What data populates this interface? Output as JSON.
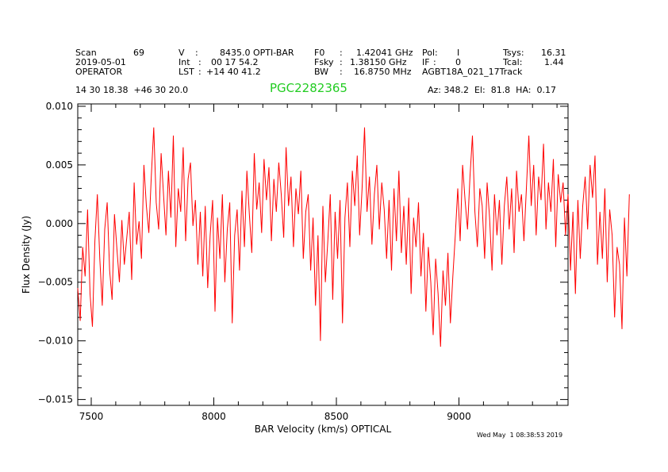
{
  "header": {
    "col1": {
      "scan_label": "Scan",
      "scan_value": "69",
      "date": "2019-05-01",
      "observer": "OPERATOR"
    },
    "col2": {
      "v_label": "V",
      "v_value": "8435.0 OPTI-BAR",
      "int_label": "Int",
      "int_value": "00 17 54.2",
      "lst_label": "LST",
      "lst_value": "+14 40 41.2"
    },
    "col3": {
      "f0_label": "F0",
      "f0_value": "1.42041 GHz",
      "fsky_label": "Fsky",
      "fsky_value": "1.38150 GHz",
      "bw_label": "BW",
      "bw_value": "16.8750 MHz"
    },
    "col4": {
      "pol_label": "Pol:",
      "pol_value": "I",
      "if_label": "IF",
      "if_value": "0",
      "project": "AGBT18A_021_17Track"
    },
    "col5": {
      "tsys_label": "Tsys:",
      "tsys_value": "16.31",
      "tcal_label": "Tcal:",
      "tcal_value": "1.44"
    },
    "coords": "14 30 18.38  +46 30 20.0",
    "source_name": "PGC2282365",
    "pointing": "Az: 348.2  El:  81.8  HA:  0.17",
    "timestamp": "Wed May  1 08:38:53 2019"
  },
  "colors": {
    "source_name": "#22cc22",
    "trace": "#ff0000"
  },
  "chart_data": {
    "type": "line",
    "xlabel": "BAR Velocity (km/s) OPTICAL",
    "ylabel": "Flux Density (Jy)",
    "xlim": [
      7445,
      9445
    ],
    "ylim": [
      -0.0155,
      0.0102
    ],
    "xticks": [
      7500,
      8000,
      8500,
      9000
    ],
    "xtick_labels": [
      "7500",
      "8000",
      "8500",
      "9000"
    ],
    "yticks": [
      0.01,
      0.005,
      0.0,
      -0.005,
      -0.01,
      -0.015
    ],
    "ytick_labels": [
      "0.010",
      "0.005",
      "0.000",
      "−0.005",
      "−0.010",
      "−0.015"
    ],
    "grid": false,
    "series": [
      {
        "x_start": 7445,
        "x_step": 10,
        "y": [
          -0.0055,
          -0.0083,
          -0.002,
          -0.0045,
          0.0012,
          -0.006,
          -0.0088,
          -0.0015,
          0.0025,
          -0.003,
          -0.007,
          -0.0005,
          0.0018,
          -0.004,
          -0.0065,
          0.0008,
          -0.0022,
          -0.005,
          0.0003,
          -0.0035,
          -0.0012,
          0.001,
          -0.0048,
          0.0035,
          -0.0018,
          0.0002,
          -0.003,
          0.005,
          0.0015,
          -0.0008,
          0.004,
          0.0082,
          0.0018,
          -0.0005,
          0.006,
          0.0025,
          -0.001,
          0.0045,
          0.0005,
          0.0075,
          -0.002,
          0.003,
          0.001,
          0.0065,
          -0.0015,
          0.0038,
          0.0052,
          -0.0002,
          0.002,
          -0.0035,
          0.001,
          -0.0045,
          0.0015,
          -0.0055,
          -0.001,
          0.002,
          -0.0075,
          0.0005,
          -0.003,
          0.0025,
          -0.005,
          -0.0005,
          0.0018,
          -0.0085,
          -0.001,
          0.0012,
          -0.004,
          0.0028,
          -0.002,
          0.0045,
          0.0008,
          -0.0025,
          0.006,
          0.0012,
          0.0035,
          -0.0008,
          0.0055,
          0.002,
          0.0048,
          -0.0015,
          0.0038,
          0.001,
          0.0052,
          0.0025,
          -0.0012,
          0.0065,
          0.0015,
          0.004,
          -0.002,
          0.003,
          0.0008,
          0.0045,
          -0.003,
          0.001,
          0.0025,
          -0.004,
          0.0005,
          -0.007,
          -0.001,
          -0.01,
          0.0015,
          -0.005,
          -0.0015,
          0.0025,
          -0.0065,
          0.001,
          -0.003,
          0.002,
          -0.0085,
          0.0005,
          0.0035,
          -0.002,
          0.0045,
          0.0015,
          0.0058,
          -0.001,
          0.003,
          0.0082,
          0.001,
          0.004,
          -0.0018,
          0.0025,
          0.005,
          -0.0005,
          0.0035,
          0.0012,
          -0.003,
          0.002,
          -0.004,
          0.003,
          -0.0015,
          0.0045,
          -0.0025,
          0.0015,
          -0.0035,
          0.0022,
          -0.006,
          0.0005,
          -0.002,
          0.0018,
          -0.0045,
          -0.0008,
          -0.0075,
          -0.002,
          -0.005,
          -0.0095,
          -0.003,
          -0.006,
          -0.0105,
          -0.004,
          -0.007,
          -0.0025,
          -0.0085,
          -0.0045,
          -0.001,
          0.003,
          -0.0015,
          0.005,
          0.002,
          -0.0005,
          0.004,
          0.0075,
          0.001,
          -0.002,
          0.003,
          0.0015,
          -0.003,
          0.0035,
          0.0005,
          -0.004,
          0.0025,
          -0.001,
          0.002,
          -0.0035,
          0.0015,
          0.004,
          -0.0005,
          0.003,
          -0.0025,
          0.0045,
          0.001,
          0.0025,
          -0.0015,
          0.003,
          0.0075,
          0.0015,
          0.005,
          -0.001,
          0.004,
          0.002,
          0.0068,
          -0.0005,
          0.0035,
          0.001,
          0.0055,
          -0.002,
          0.0042,
          0.0018,
          0.0035,
          -0.001,
          0.0025,
          -0.004,
          0.001,
          -0.006,
          0.002,
          -0.003,
          0.0015,
          0.004,
          -0.0005,
          0.005,
          0.0022,
          0.0058,
          -0.0035,
          0.001,
          -0.003,
          0.003,
          -0.005,
          0.0012,
          -0.001,
          -0.008,
          -0.002,
          -0.0035,
          -0.009,
          0.0005,
          -0.0045,
          0.0025
        ]
      }
    ]
  }
}
